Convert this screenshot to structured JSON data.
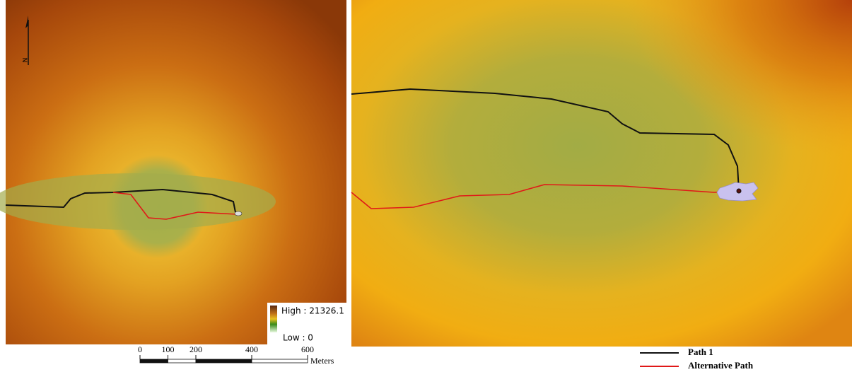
{
  "north_arrow": {
    "label": "N"
  },
  "raster_legend": {
    "high": "High : 21326.1",
    "low": "Low : 0"
  },
  "scale_bar": {
    "ticks": [
      0,
      100,
      200,
      400,
      600
    ],
    "unit": "Meters"
  },
  "path_legend": {
    "items": [
      "Path 1",
      "Alternative Path"
    ]
  }
}
